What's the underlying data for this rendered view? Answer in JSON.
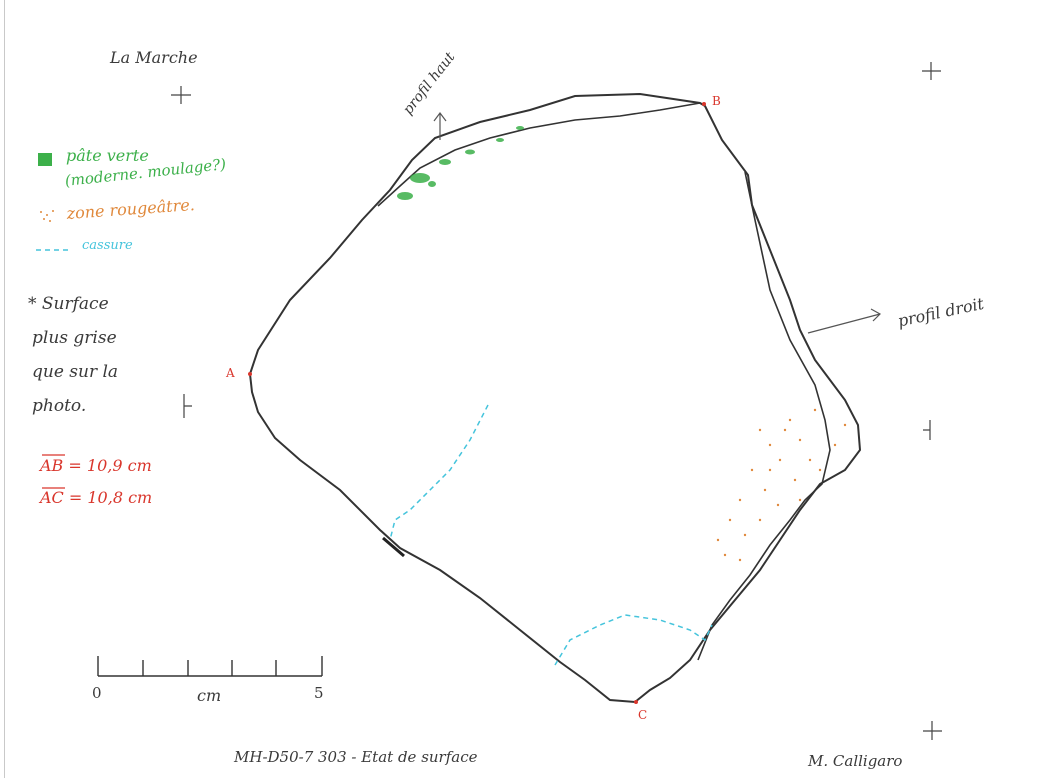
{
  "site": "La Marche",
  "legend": {
    "green_label": "pâte verte",
    "green_sublabel": "(moderne. moulage?)",
    "orange_label": "zone rougeâtre.",
    "cyan_label": "cassure"
  },
  "note_lines": [
    "* Surface",
    "plus grise",
    "que sur la",
    "photo."
  ],
  "measurements": [
    "AB = 10,9 cm",
    "AC = 10,8 cm"
  ],
  "scale": {
    "start_label": "0",
    "unit_label": "cm",
    "end_label": "5"
  },
  "points": {
    "a": "A",
    "b": "B",
    "c": "C"
  },
  "profile_labels": {
    "top": "profil haut",
    "right": "profil droit"
  },
  "caption": "MH-D50-7 303 - Etat de surface",
  "author": "M. Calligaro",
  "colors": {
    "ink": "#3a3a3a",
    "green": "#3cb04a",
    "orange": "#e0893c",
    "cyan": "#45c4dc",
    "red": "#d9362c"
  }
}
